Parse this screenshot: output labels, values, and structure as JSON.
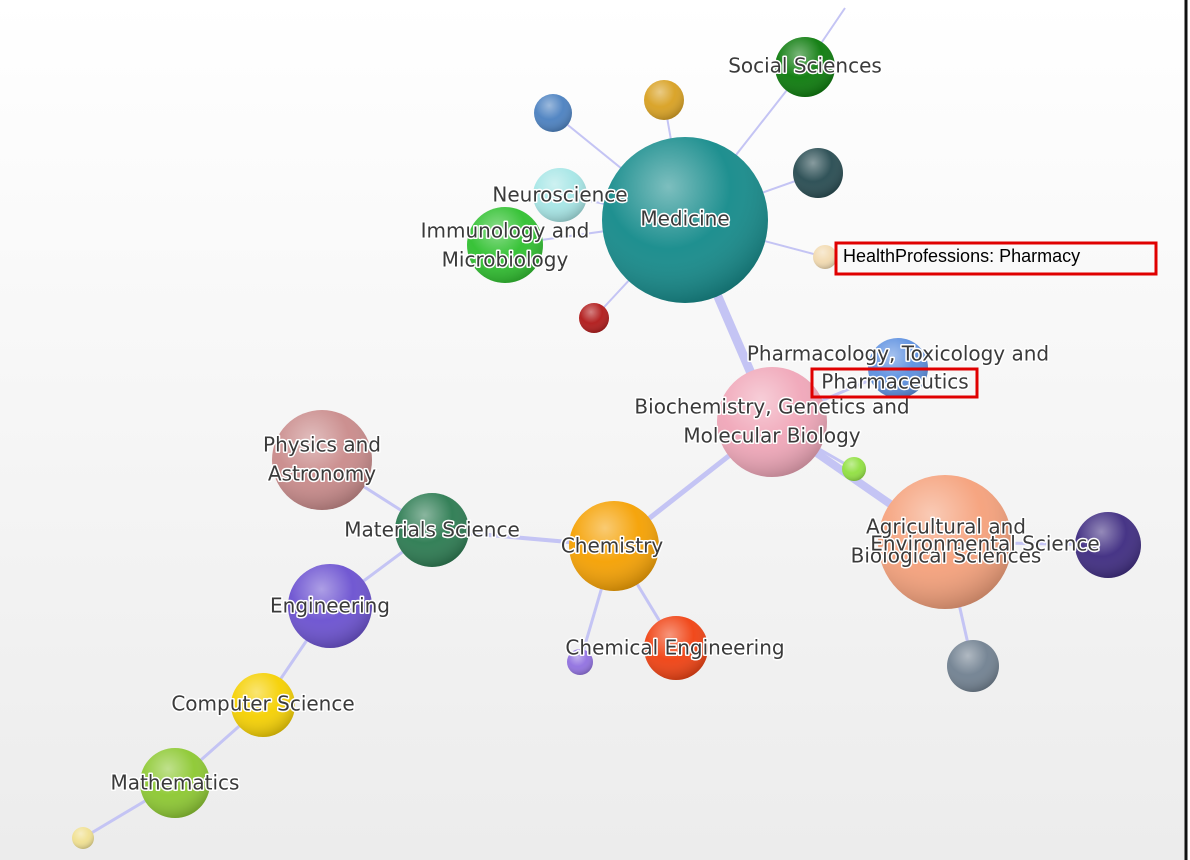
{
  "nodes": [
    {
      "label": [
        "Social Sciences"
      ]
    },
    {
      "label": [
        "Neuroscience"
      ]
    },
    {
      "label": [
        "Medicine"
      ]
    },
    {
      "label": [
        "Immunology and",
        "Microbiology"
      ]
    },
    {
      "label": [
        "HealthProfessions: Pharmacy"
      ]
    },
    {
      "label": [
        "Pharmacology, Toxicology and",
        "Pharmaceutics"
      ]
    },
    {
      "label": [
        "Biochemistry, Genetics and",
        "Molecular Biology"
      ]
    },
    {
      "label": [
        "Physics and",
        "Astronomy"
      ]
    },
    {
      "label": [
        "Materials Science"
      ]
    },
    {
      "label": [
        "Chemistry"
      ]
    },
    {
      "label": [
        "Agricultural and",
        "Biological Sciences"
      ]
    },
    {
      "label": [
        "Environmental Science"
      ]
    },
    {
      "label": [
        "Engineering"
      ]
    },
    {
      "label": [
        "Chemical Engineering"
      ]
    },
    {
      "label": [
        "Computer Science"
      ]
    },
    {
      "label": [
        "Mathematics"
      ]
    }
  ]
}
